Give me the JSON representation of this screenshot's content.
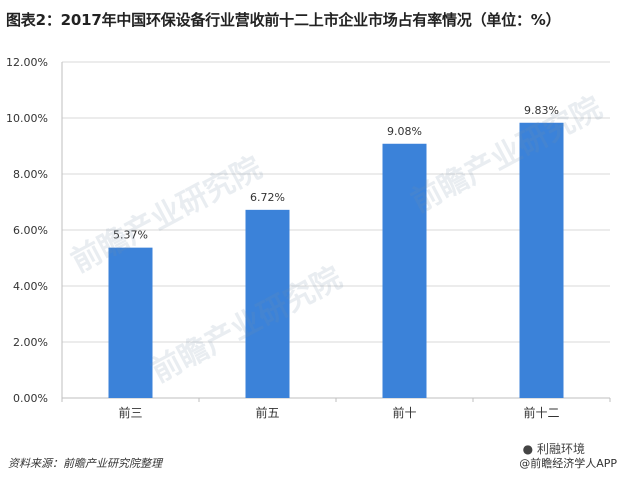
{
  "page": {
    "title": "图表2：2017年中国环保设备行业营收前十二上市企业市场占有率情况（单位：%）",
    "source": "资料来源：前瞻产业研究院整理",
    "credit": "@前瞻经济学人APP",
    "brand_tag": "利融环境",
    "watermark": "前瞻产业研究院"
  },
  "colors": {
    "bar": "#3b82d9",
    "grid": "#d9d9d9",
    "axis": "#bfbfbf",
    "text": "#333333"
  },
  "chart_data": {
    "type": "bar",
    "title": "图表2：2017年中国环保设备行业营收前十二上市企业市场占有率情况（单位：%）",
    "categories": [
      "前三",
      "前五",
      "前十",
      "前十二"
    ],
    "values": [
      5.37,
      6.72,
      9.08,
      9.83
    ],
    "value_labels": [
      "5.37%",
      "6.72%",
      "9.08%",
      "9.83%"
    ],
    "ylim": [
      0,
      12
    ],
    "yticks": [
      "0.00%",
      "2.00%",
      "4.00%",
      "6.00%",
      "8.00%",
      "10.00%",
      "12.00%"
    ],
    "ytick_values": [
      0,
      2,
      4,
      6,
      8,
      10,
      12
    ],
    "grid": true,
    "legend": "none",
    "xlabel": "",
    "ylabel": ""
  }
}
